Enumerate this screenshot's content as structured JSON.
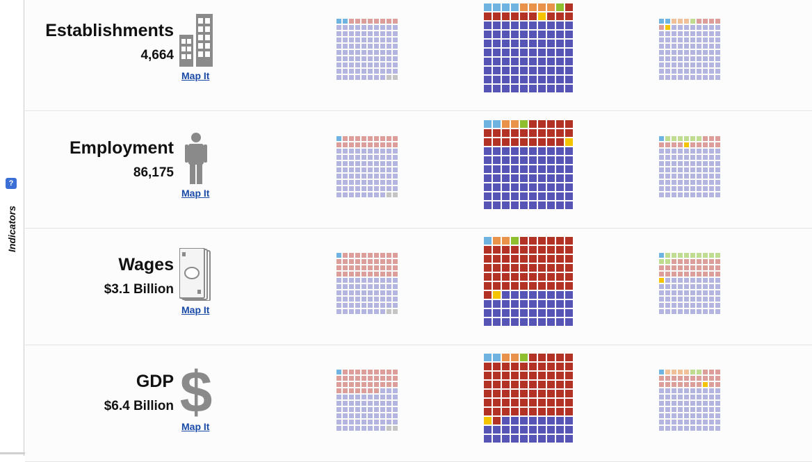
{
  "sidebar": {
    "label": "Indicators",
    "help_label": "?"
  },
  "colors": {
    "light_blue": "#6fb4e0",
    "orange": "#e8924a",
    "green": "#8fbf2f",
    "yellow": "#f5c400",
    "dark_red": "#b23226",
    "dark_blue": "#5654b4",
    "gray": "#c4c4c4",
    "pale_blue": "#b4b4e0",
    "pale_red": "#dc9e9a",
    "pale_orange": "#f0c098",
    "pale_green": "#c0dc90"
  },
  "rows": [
    {
      "label": "Establishments",
      "value": "4,664",
      "icon": "buildings-icon",
      "map_link": "Map It",
      "waffles": [
        {
          "segments": [
            [
              "light_blue",
              2
            ],
            [
              "pale_red",
              8
            ],
            [
              "pale_blue",
              88
            ],
            [
              "gray",
              2
            ]
          ]
        },
        {
          "segments": [
            [
              "light_blue",
              4
            ],
            [
              "orange",
              4
            ],
            [
              "green",
              1
            ],
            [
              "dark_red",
              1
            ],
            [
              "dark_red",
              6
            ],
            [
              "yellow",
              1
            ],
            [
              "dark_red",
              3
            ],
            [
              "dark_blue",
              80
            ]
          ]
        },
        {
          "segments": [
            [
              "light_blue",
              2
            ],
            [
              "pale_orange",
              3
            ],
            [
              "pale_green",
              1
            ],
            [
              "pale_red",
              4
            ],
            [
              "pale_red",
              1
            ],
            [
              "yellow",
              1
            ],
            [
              "pale_blue",
              88
            ]
          ]
        }
      ]
    },
    {
      "label": "Employment",
      "value": "86,175",
      "icon": "person-icon",
      "map_link": "Map It",
      "waffles": [
        {
          "segments": [
            [
              "light_blue",
              1
            ],
            [
              "pale_red",
              19
            ],
            [
              "pale_blue",
              78
            ],
            [
              "gray",
              2
            ]
          ]
        },
        {
          "segments": [
            [
              "light_blue",
              2
            ],
            [
              "orange",
              2
            ],
            [
              "green",
              1
            ],
            [
              "dark_red",
              24
            ],
            [
              "yellow",
              1
            ],
            [
              "dark_blue",
              70
            ]
          ]
        },
        {
          "segments": [
            [
              "light_blue",
              1
            ],
            [
              "pale_green",
              6
            ],
            [
              "pale_red",
              3
            ],
            [
              "pale_red",
              4
            ],
            [
              "yellow",
              1
            ],
            [
              "pale_red",
              5
            ],
            [
              "pale_blue",
              80
            ]
          ]
        }
      ]
    },
    {
      "label": "Wages",
      "value": "$3.1 Billion",
      "icon": "banknote-icon",
      "map_link": "Map It",
      "waffles": [
        {
          "segments": [
            [
              "light_blue",
              1
            ],
            [
              "pale_red",
              39
            ],
            [
              "pale_blue",
              58
            ],
            [
              "gray",
              2
            ]
          ]
        },
        {
          "segments": [
            [
              "light_blue",
              1
            ],
            [
              "orange",
              2
            ],
            [
              "green",
              1
            ],
            [
              "dark_red",
              57
            ],
            [
              "yellow",
              1
            ],
            [
              "dark_blue",
              38
            ]
          ]
        },
        {
          "segments": [
            [
              "light_blue",
              1
            ],
            [
              "pale_green",
              11
            ],
            [
              "pale_red",
              28
            ],
            [
              "yellow",
              1
            ],
            [
              "pale_blue",
              59
            ]
          ]
        }
      ]
    },
    {
      "label": "GDP",
      "value": "$6.4 Billion",
      "icon": "dollar-icon",
      "map_link": "Map It",
      "waffles": [
        {
          "segments": [
            [
              "light_blue",
              1
            ],
            [
              "pale_red",
              36
            ],
            [
              "pale_blue",
              61
            ],
            [
              "gray",
              2
            ]
          ]
        },
        {
          "segments": [
            [
              "light_blue",
              2
            ],
            [
              "orange",
              2
            ],
            [
              "green",
              1
            ],
            [
              "dark_red",
              65
            ],
            [
              "yellow",
              1
            ],
            [
              "dark_red",
              1
            ],
            [
              "dark_blue",
              28
            ]
          ]
        },
        {
          "segments": [
            [
              "light_blue",
              1
            ],
            [
              "pale_orange",
              4
            ],
            [
              "pale_green",
              2
            ],
            [
              "pale_red",
              20
            ],
            [
              "yellow",
              1
            ],
            [
              "pale_red",
              2
            ],
            [
              "pale_blue",
              70
            ]
          ]
        }
      ]
    }
  ]
}
